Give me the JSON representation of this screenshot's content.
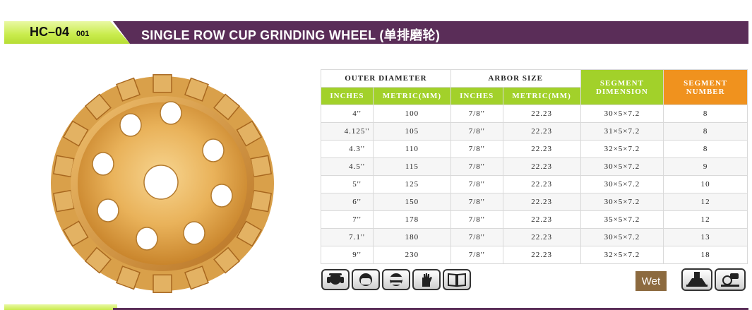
{
  "header": {
    "code": "HC–04",
    "code_sub": "001",
    "title": "SINGLE ROW CUP GRINDING WHEEL (单排磨轮)"
  },
  "colors": {
    "accent_green": "#a2d12a",
    "accent_orange": "#f0921e",
    "band_purple": "#5a2d58",
    "wet_badge": "#8c6a3f"
  },
  "table": {
    "group_headers": {
      "outer_diameter": "OUTER DIAMETER",
      "arbor_size": "ARBOR SIZE",
      "segment_dimension": "SEGMENT DIMENSION",
      "segment_number": "SEGMENT NUMBER"
    },
    "sub_headers": {
      "od_inches": "INCHES",
      "od_metric": "METRIC(MM)",
      "arbor_inches": "INCHES",
      "arbor_metric": "METRIC(MM)"
    },
    "rows": [
      {
        "od_in": "4''",
        "od_mm": "100",
        "arbor_in": "7/8''",
        "arbor_mm": "22.23",
        "seg_dim": "30×5×7.2",
        "seg_num": "8"
      },
      {
        "od_in": "4.125''",
        "od_mm": "105",
        "arbor_in": "7/8''",
        "arbor_mm": "22.23",
        "seg_dim": "31×5×7.2",
        "seg_num": "8"
      },
      {
        "od_in": "4.3''",
        "od_mm": "110",
        "arbor_in": "7/8''",
        "arbor_mm": "22.23",
        "seg_dim": "32×5×7.2",
        "seg_num": "8"
      },
      {
        "od_in": "4.5''",
        "od_mm": "115",
        "arbor_in": "7/8''",
        "arbor_mm": "22.23",
        "seg_dim": "30×5×7.2",
        "seg_num": "9"
      },
      {
        "od_in": "5''",
        "od_mm": "125",
        "arbor_in": "7/8''",
        "arbor_mm": "22.23",
        "seg_dim": "30×5×7.2",
        "seg_num": "10"
      },
      {
        "od_in": "6''",
        "od_mm": "150",
        "arbor_in": "7/8''",
        "arbor_mm": "22.23",
        "seg_dim": "30×5×7.2",
        "seg_num": "12"
      },
      {
        "od_in": "7''",
        "od_mm": "178",
        "arbor_in": "7/8''",
        "arbor_mm": "22.23",
        "seg_dim": "35×5×7.2",
        "seg_num": "12"
      },
      {
        "od_in": "7.1''",
        "od_mm": "180",
        "arbor_in": "7/8''",
        "arbor_mm": "22.23",
        "seg_dim": "30×5×7.2",
        "seg_num": "13"
      },
      {
        "od_in": "9''",
        "od_mm": "230",
        "arbor_in": "7/8''",
        "arbor_mm": "22.23",
        "seg_dim": "32×5×7.2",
        "seg_num": "18"
      }
    ]
  },
  "safety_icons": [
    "ear-protection-icon",
    "face-mask-icon",
    "safety-goggles-icon",
    "gloves-icon",
    "manual-book-icon"
  ],
  "wet_label": "Wet",
  "tool_icons": [
    "angle-grinder-icon",
    "hand-grinder-icon"
  ]
}
